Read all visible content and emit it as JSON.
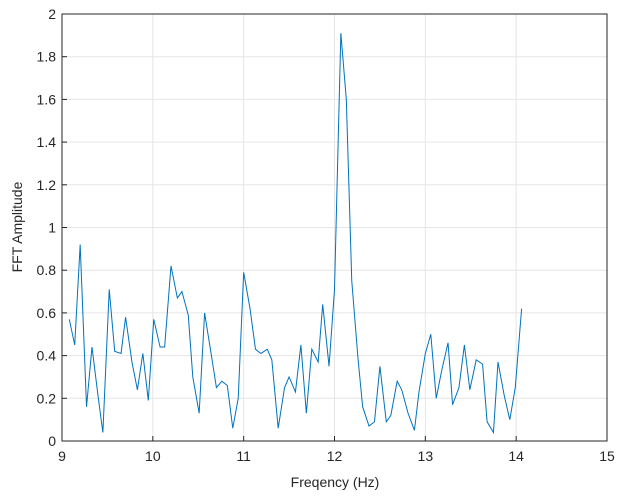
{
  "chart_data": {
    "type": "line",
    "xlabel": "Freqency (Hz)",
    "ylabel": "FFT Amplitude",
    "x": [
      9.08,
      9.14,
      9.2,
      9.27,
      9.33,
      9.4,
      9.45,
      9.52,
      9.58,
      9.65,
      9.7,
      9.77,
      9.83,
      9.89,
      9.95,
      10.01,
      10.08,
      10.13,
      10.2,
      10.27,
      10.32,
      10.39,
      10.44,
      10.51,
      10.57,
      10.63,
      10.7,
      10.76,
      10.82,
      10.88,
      10.94,
      11.0,
      11.07,
      11.13,
      11.19,
      11.26,
      11.31,
      11.38,
      11.45,
      11.5,
      11.57,
      11.63,
      11.69,
      11.75,
      11.82,
      11.87,
      11.94,
      12.0,
      12.07,
      12.13,
      12.19,
      12.26,
      12.31,
      12.38,
      12.44,
      12.5,
      12.57,
      12.62,
      12.69,
      12.74,
      12.81,
      12.88,
      12.93,
      13.0,
      13.06,
      13.12,
      13.18,
      13.25,
      13.3,
      13.37,
      13.43,
      13.49,
      13.56,
      13.63,
      13.68,
      13.75,
      13.8,
      13.87,
      13.93,
      13.99,
      14.06
    ],
    "series": [
      {
        "color": "#0072bd",
        "values": [
          0.57,
          0.45,
          0.92,
          0.16,
          0.44,
          0.2,
          0.04,
          0.71,
          0.42,
          0.41,
          0.58,
          0.37,
          0.24,
          0.41,
          0.19,
          0.57,
          0.44,
          0.44,
          0.82,
          0.67,
          0.7,
          0.59,
          0.3,
          0.13,
          0.6,
          0.44,
          0.25,
          0.28,
          0.26,
          0.06,
          0.2,
          0.79,
          0.62,
          0.43,
          0.41,
          0.43,
          0.38,
          0.06,
          0.25,
          0.3,
          0.23,
          0.45,
          0.13,
          0.43,
          0.37,
          0.64,
          0.35,
          0.71,
          1.91,
          1.6,
          0.75,
          0.38,
          0.16,
          0.07,
          0.09,
          0.35,
          0.09,
          0.12,
          0.28,
          0.24,
          0.13,
          0.05,
          0.23,
          0.41,
          0.5,
          0.2,
          0.33,
          0.46,
          0.17,
          0.25,
          0.45,
          0.24,
          0.38,
          0.36,
          0.09,
          0.04,
          0.37,
          0.21,
          0.1,
          0.25,
          0.62
        ]
      }
    ],
    "xlim": [
      9,
      15
    ],
    "xticks": [
      9,
      10,
      11,
      12,
      13,
      14,
      15
    ],
    "ylim": [
      0,
      2
    ],
    "yticks": [
      0,
      0.2,
      0.4,
      0.6,
      0.8,
      1,
      1.2,
      1.4,
      1.6,
      1.8,
      2
    ],
    "grid": true
  }
}
